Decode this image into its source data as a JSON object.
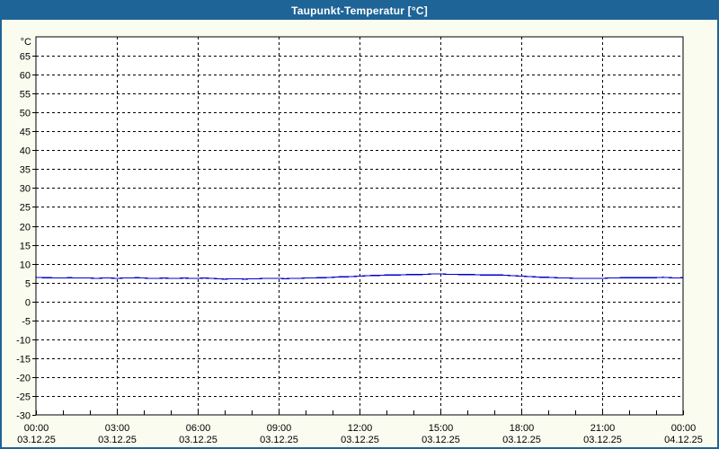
{
  "window": {
    "title": "Taupunkt-Temperatur [°C]"
  },
  "colors": {
    "titlebar_bg": "#1e6497",
    "titlebar_text": "#ffffff",
    "window_border": "#1e6497",
    "content_bg": "#fbfcf0",
    "plot_bg": "#ffffff",
    "axis": "#000000",
    "grid": "#000000",
    "label_text": "#000000",
    "series_line": "#0000cd"
  },
  "chart_data": {
    "type": "line",
    "title": "Taupunkt-Temperatur [°C]",
    "ylabel": "°C",
    "ylim": [
      -30,
      70
    ],
    "yticks": [
      65,
      60,
      55,
      50,
      45,
      40,
      35,
      30,
      25,
      20,
      15,
      10,
      5,
      0,
      -5,
      -10,
      -15,
      -20,
      -25,
      -30
    ],
    "xlim_hours": [
      0,
      24
    ],
    "minor_xtick_step_hours": 1,
    "grid_style": "dashed",
    "legend": "none",
    "xticks": [
      {
        "hour": 0,
        "time": "00:00",
        "date": "03.12.25"
      },
      {
        "hour": 3,
        "time": "03:00",
        "date": "03.12.25"
      },
      {
        "hour": 6,
        "time": "06:00",
        "date": "03.12.25"
      },
      {
        "hour": 9,
        "time": "09:00",
        "date": "03.12.25"
      },
      {
        "hour": 12,
        "time": "12:00",
        "date": "03.12.25"
      },
      {
        "hour": 15,
        "time": "15:00",
        "date": "03.12.25"
      },
      {
        "hour": 18,
        "time": "18:00",
        "date": "03.12.25"
      },
      {
        "hour": 21,
        "time": "21:00",
        "date": "03.12.25"
      },
      {
        "hour": 24,
        "time": "00:00",
        "date": "04.12.25"
      }
    ],
    "series": [
      {
        "name": "Taupunkt-Temperatur",
        "unit": "°C",
        "color": "#0000cd",
        "x_start_hour": 0,
        "x_step_hours": 0.25,
        "values": [
          6.4,
          6.3,
          6.3,
          6.2,
          6.2,
          6.3,
          6.2,
          6.2,
          6.2,
          6.1,
          6.2,
          6.2,
          6.1,
          6.2,
          6.2,
          6.3,
          6.2,
          6.1,
          6.1,
          6.2,
          6.1,
          6.1,
          6.2,
          6.1,
          6.1,
          6.2,
          6.1,
          6.0,
          5.9,
          6.0,
          6.0,
          5.9,
          6.0,
          6.0,
          6.1,
          6.1,
          6.1,
          6.0,
          6.1,
          6.1,
          6.2,
          6.2,
          6.3,
          6.3,
          6.4,
          6.5,
          6.5,
          6.6,
          6.7,
          6.8,
          6.9,
          6.9,
          7.0,
          7.0,
          7.0,
          7.1,
          7.1,
          7.1,
          7.2,
          7.3,
          7.3,
          7.2,
          7.2,
          7.1,
          7.1,
          7.1,
          7.0,
          7.0,
          7.0,
          7.0,
          6.9,
          6.8,
          6.7,
          6.6,
          6.5,
          6.4,
          6.4,
          6.3,
          6.2,
          6.2,
          6.1,
          6.1,
          6.1,
          6.1,
          6.1,
          6.2,
          6.2,
          6.3,
          6.3,
          6.3,
          6.3,
          6.3,
          6.3,
          6.4,
          6.3,
          6.2,
          6.3
        ]
      }
    ]
  }
}
